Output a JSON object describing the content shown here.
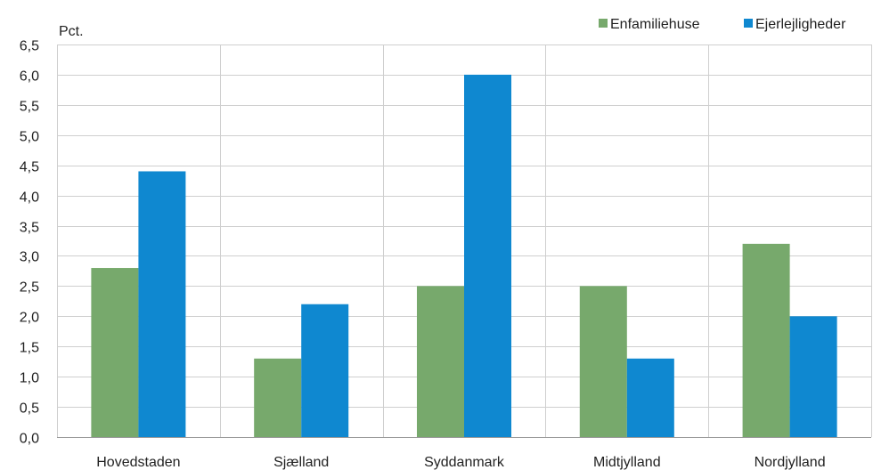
{
  "chart_data": {
    "type": "bar",
    "ylabel": "Pct.",
    "categories": [
      "Hovedstaden",
      "Sjælland",
      "Syddanmark",
      "Midtjylland",
      "Nordjylland"
    ],
    "series": [
      {
        "name": "Enfamiliehuse",
        "color": "#77a96c",
        "values": [
          2.8,
          1.3,
          2.5,
          2.5,
          3.2
        ]
      },
      {
        "name": "Ejerlejligheder",
        "color": "#0f88d0",
        "values": [
          4.4,
          2.2,
          6.0,
          1.3,
          2.0
        ]
      }
    ],
    "ylim": [
      0,
      6.5
    ],
    "yticks": [
      "0,0",
      "0,5",
      "1,0",
      "1,5",
      "2,0",
      "2,5",
      "3,0",
      "3,5",
      "4,0",
      "4,5",
      "5,0",
      "5,5",
      "6,0",
      "6,5"
    ],
    "grid": true,
    "legend_position": "top-right"
  }
}
